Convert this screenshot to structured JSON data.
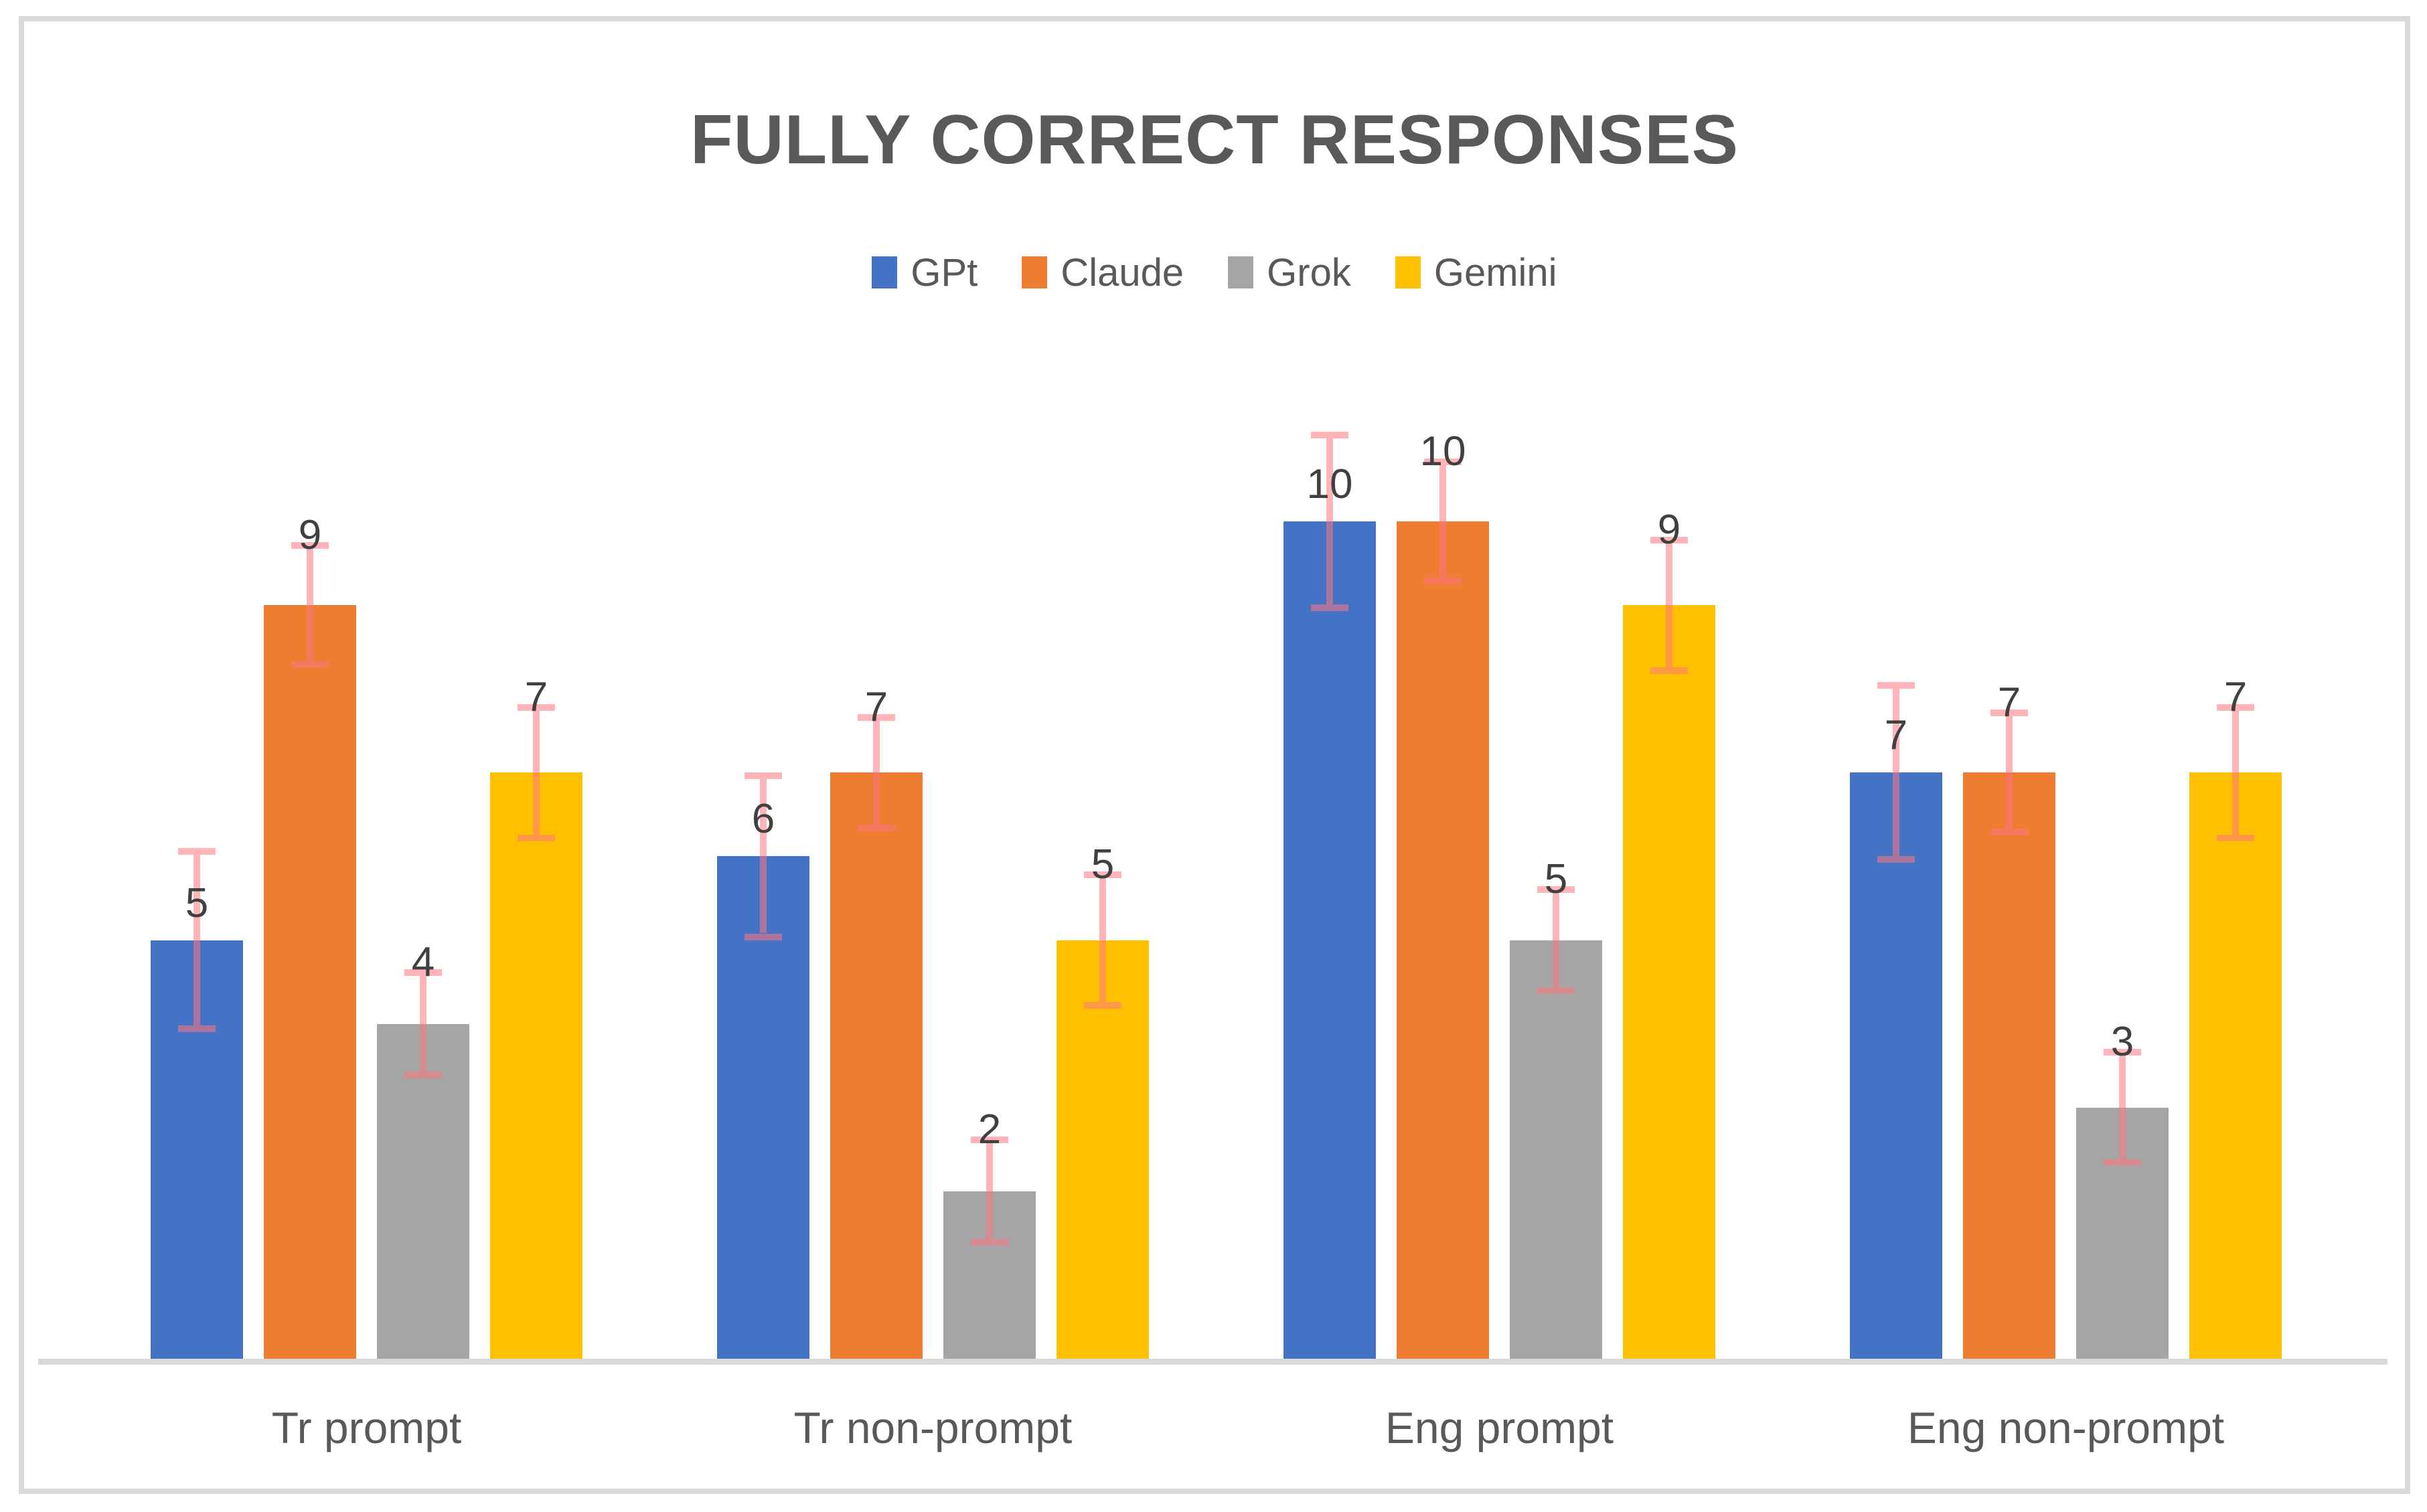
{
  "page": {
    "background": "#FFFFFF",
    "canvas_border_color": "#D9D9D9"
  },
  "chart": {
    "title": "FULLY CORRECT RESPONSES",
    "title_color": "#595959",
    "axis_line_color": "#D9D9D9",
    "category_label_color": "#595959",
    "value_label_color": "#404040",
    "legend_text_color": "#595959",
    "error_bar_color": "rgba(255,118,129,0.55)"
  },
  "chart_data": {
    "type": "bar",
    "title": "FULLY CORRECT RESPONSES",
    "categories": [
      "Tr prompt",
      "Tr non-prompt",
      "Eng prompt",
      "Eng non-prompt"
    ],
    "series": [
      {
        "name": "GPt",
        "color": "#4472C4",
        "values": [
          5,
          6,
          10,
          7
        ],
        "errors": [
          1.1,
          1.0,
          1.07,
          1.08
        ]
      },
      {
        "name": "Claude",
        "color": "#ED7D31",
        "values": [
          9,
          7,
          10,
          7
        ],
        "errors": [
          0.75,
          0.7,
          0.75,
          0.75
        ]
      },
      {
        "name": "Grok",
        "color": "#A5A5A5",
        "values": [
          4,
          2,
          5,
          3
        ],
        "errors": [
          0.65,
          0.65,
          0.64,
          0.7
        ]
      },
      {
        "name": "Gemini",
        "color": "#FFC000",
        "values": [
          7,
          5,
          9,
          7
        ],
        "errors": [
          0.82,
          0.82,
          0.82,
          0.82
        ]
      }
    ],
    "ylim": [
      0,
      10.8
    ],
    "y_axis_visible": false,
    "x_axis_line": true,
    "gridlines": false,
    "legend_position": "top",
    "data_labels": "outside-end",
    "error_bars": "plus-minus, pink semi-transparent, capped"
  }
}
